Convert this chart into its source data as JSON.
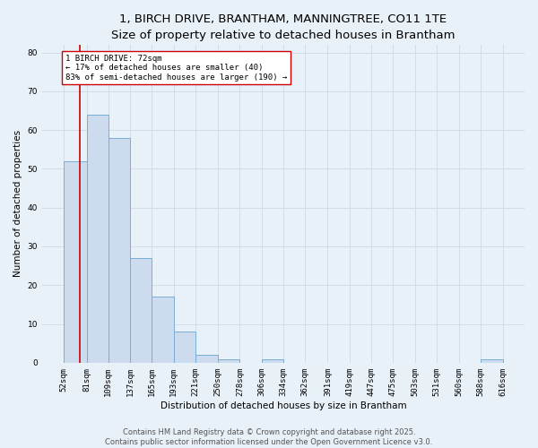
{
  "title": "1, BIRCH DRIVE, BRANTHAM, MANNINGTREE, CO11 1TE",
  "subtitle": "Size of property relative to detached houses in Brantham",
  "xlabel": "Distribution of detached houses by size in Brantham",
  "ylabel": "Number of detached properties",
  "bin_edges": [
    52,
    81,
    109,
    137,
    165,
    193,
    221,
    250,
    278,
    306,
    334,
    362,
    391,
    419,
    447,
    475,
    503,
    531,
    560,
    588,
    616
  ],
  "bar_heights": [
    52,
    64,
    58,
    27,
    17,
    8,
    2,
    1,
    0,
    1,
    0,
    0,
    0,
    0,
    0,
    0,
    0,
    0,
    0,
    1
  ],
  "bar_facecolor": "#ccdcee",
  "bar_edgecolor": "#7aaed6",
  "grid_color": "#d0dce8",
  "background_color": "#e8f0f8",
  "property_line_x": 72,
  "property_line_color": "#cc0000",
  "annotation_text": "1 BIRCH DRIVE: 72sqm\n← 17% of detached houses are smaller (40)\n83% of semi-detached houses are larger (190) →",
  "annotation_box_edgecolor": "#cc0000",
  "annotation_box_facecolor": "#ffffff",
  "ylim": [
    0,
    82
  ],
  "yticks": [
    0,
    10,
    20,
    30,
    40,
    50,
    60,
    70,
    80
  ],
  "footer_line1": "Contains HM Land Registry data © Crown copyright and database right 2025.",
  "footer_line2": "Contains public sector information licensed under the Open Government Licence v3.0.",
  "title_fontsize": 9.5,
  "subtitle_fontsize": 8.5,
  "axis_label_fontsize": 7.5,
  "tick_fontsize": 6.5,
  "annotation_fontsize": 6.5,
  "footer_fontsize": 6.0
}
